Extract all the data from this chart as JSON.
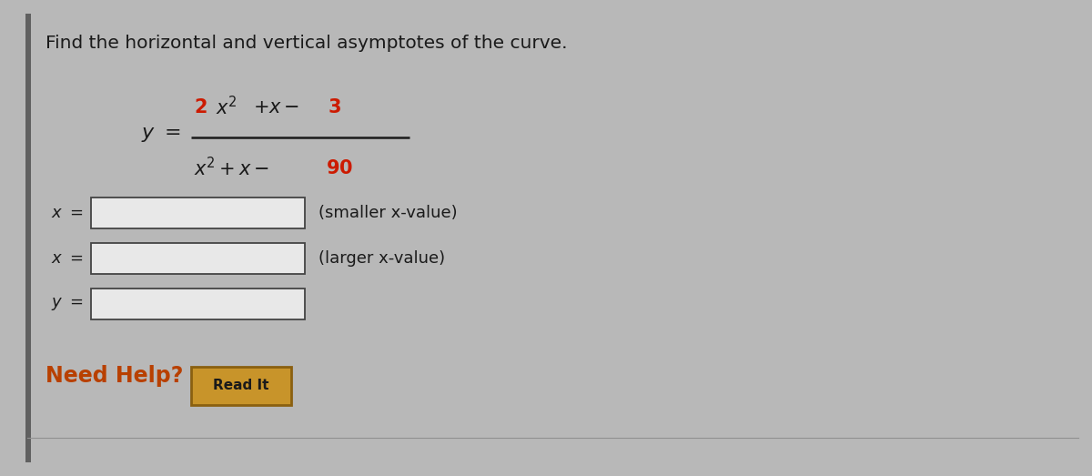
{
  "background_color": "#b8b8b8",
  "panel_bg": "#c0c0c0",
  "title_text": "Find the horizontal and vertical asymptotes of the curve.",
  "title_fontsize": 14.5,
  "title_color": "#1a1a1a",
  "hint_smaller": "(smaller x-value)",
  "hint_larger": "(larger x-value)",
  "need_help_text": "Need Help?",
  "need_help_color": "#b84000",
  "read_it_text": "Read It",
  "box_fill": "#e8e8e8",
  "box_border": "#444444",
  "read_it_fill": "#c8942a",
  "read_it_border": "#8a6010",
  "left_bar_color": "#606060",
  "fraction_bar_color": "#1a1a1a",
  "text_color": "#1a1a1a",
  "red_color": "#cc1a00"
}
